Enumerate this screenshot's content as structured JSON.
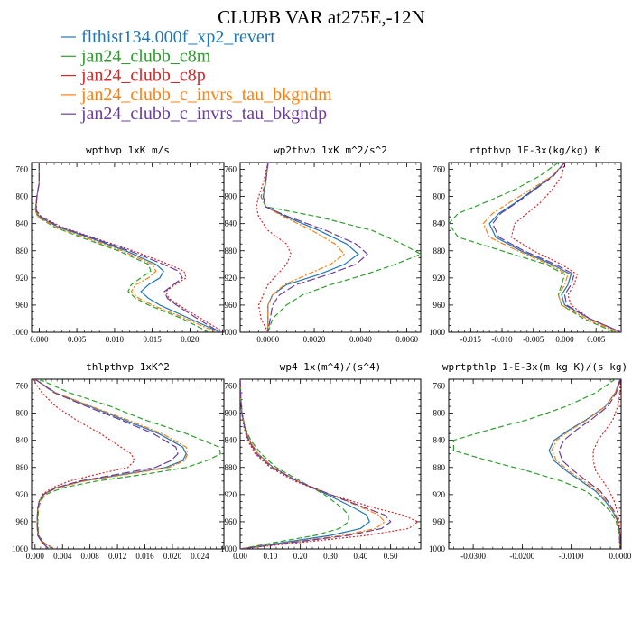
{
  "figure": {
    "title": "CLUBB VAR at275E,-12N",
    "legend": [
      {
        "label": "flthist134.000f_xp2_revert",
        "color": "#1f77b4",
        "dash": "solid"
      },
      {
        "label": "jan24_clubb_c8m",
        "color": "#2ca02c",
        "dash": "dashed"
      },
      {
        "label": "jan24_clubb_c8p",
        "color": "#d62728",
        "dash": "dotted"
      },
      {
        "label": "jan24_clubb_c_invrs_tau_bkgndm",
        "color": "#ff7f0e",
        "dash": "dashdot"
      },
      {
        "label": "jan24_clubb_c_invrs_tau_bkgndp",
        "color": "#6a3d9a",
        "dash": "longdash"
      }
    ]
  },
  "chart_data": [
    {
      "type": "line",
      "title": "wpthvp  1xK m/s",
      "xlim": [
        -0.001,
        0.0245
      ],
      "ylim": [
        1000,
        750
      ],
      "xticks": [
        0.0,
        0.005,
        0.01,
        0.015,
        0.02
      ],
      "xtick_labels": [
        "0.000",
        "0.005",
        "0.010",
        "0.015",
        "0.020"
      ],
      "yticks": [
        760,
        800,
        840,
        880,
        920,
        960,
        1000
      ],
      "ytick_labels": [
        "760",
        "800",
        "840",
        "880",
        "920",
        "960",
        "1000"
      ],
      "y": [
        750,
        780,
        800,
        820,
        830,
        845,
        860,
        880,
        900,
        910,
        920,
        930,
        940,
        950,
        960,
        980,
        1000
      ],
      "series": [
        {
          "name": "flthist134.000f_xp2_revert",
          "x": [
            0.0,
            0.0,
            -0.0003,
            -0.0005,
            0.0,
            0.0025,
            0.0065,
            0.0115,
            0.0155,
            0.0165,
            0.016,
            0.0145,
            0.0135,
            0.0145,
            0.016,
            0.02,
            0.024
          ]
        },
        {
          "name": "jan24_clubb_c8m",
          "x": [
            0.0,
            0.0,
            -0.0003,
            -0.0005,
            -0.0002,
            0.002,
            0.0055,
            0.0105,
            0.0145,
            0.0148,
            0.0135,
            0.0122,
            0.0118,
            0.0128,
            0.0145,
            0.019,
            0.0225
          ]
        },
        {
          "name": "jan24_clubb_c8p",
          "x": [
            0.0,
            0.0,
            -0.0003,
            -0.0004,
            0.0003,
            0.003,
            0.007,
            0.0125,
            0.0172,
            0.0192,
            0.0195,
            0.018,
            0.0168,
            0.0172,
            0.0185,
            0.0215,
            0.0245
          ]
        },
        {
          "name": "jan24_clubb_c_invrs_tau_bkgndm",
          "x": [
            0.0,
            0.0,
            -0.0003,
            -0.0005,
            -0.0001,
            0.0022,
            0.006,
            0.011,
            0.015,
            0.0155,
            0.0145,
            0.0128,
            0.0122,
            0.0132,
            0.015,
            0.0195,
            0.0235
          ]
        },
        {
          "name": "jan24_clubb_c_invrs_tau_bkgndp",
          "x": [
            0.0,
            0.0,
            -0.0003,
            -0.0004,
            0.0002,
            0.0028,
            0.0068,
            0.012,
            0.0165,
            0.0185,
            0.019,
            0.0178,
            0.0166,
            0.017,
            0.0182,
            0.021,
            0.024
          ]
        }
      ]
    },
    {
      "type": "line",
      "title": "wp2thvp  1xK m^2/s^2",
      "xlim": [
        -0.0012,
        0.0066
      ],
      "ylim": [
        1000,
        750
      ],
      "xticks": [
        0.0,
        0.002,
        0.004,
        0.006
      ],
      "xtick_labels": [
        "0.0000",
        "0.0020",
        "0.0040",
        "0.0060"
      ],
      "yticks": [
        760,
        800,
        840,
        880,
        920,
        960,
        1000
      ],
      "ytick_labels": [
        "760",
        "800",
        "840",
        "880",
        "920",
        "960",
        "1000"
      ],
      "y": [
        750,
        780,
        800,
        815,
        830,
        850,
        870,
        885,
        900,
        915,
        930,
        945,
        960,
        980,
        1000
      ],
      "series": [
        {
          "name": "flthist134.000f_xp2_revert",
          "x": [
            0.0,
            -0.0001,
            -0.0002,
            -0.0001,
            0.0008,
            0.0022,
            0.0034,
            0.0039,
            0.0033,
            0.0022,
            0.0008,
            0.0002,
            0.0,
            0.0,
            0.0
          ]
        },
        {
          "name": "jan24_clubb_c8m",
          "x": [
            0.0,
            -0.0001,
            -0.0003,
            -0.0001,
            0.0022,
            0.0045,
            0.0058,
            0.0066,
            0.0055,
            0.0042,
            0.0027,
            0.0015,
            0.0008,
            0.0002,
            0.0
          ]
        },
        {
          "name": "jan24_clubb_c8p",
          "x": [
            0.0,
            -0.0002,
            -0.0004,
            -0.0005,
            -0.0004,
            0.0,
            0.0008,
            0.001,
            0.0008,
            0.0004,
            0.0,
            -0.0002,
            -0.0004,
            -0.0003,
            0.0
          ]
        },
        {
          "name": "jan24_clubb_c_invrs_tau_bkgndm",
          "x": [
            0.0,
            -0.0001,
            -0.0002,
            -0.0001,
            0.0007,
            0.0019,
            0.0029,
            0.0033,
            0.0027,
            0.0017,
            0.0007,
            0.0002,
            0.0,
            0.0,
            0.0
          ]
        },
        {
          "name": "jan24_clubb_c_invrs_tau_bkgndp",
          "x": [
            0.0,
            -0.0001,
            -0.0002,
            -0.0001,
            0.0009,
            0.0025,
            0.0038,
            0.0043,
            0.0038,
            0.0026,
            0.0012,
            0.0005,
            0.0002,
            0.0001,
            0.0
          ]
        }
      ]
    },
    {
      "type": "line",
      "title": "rtpthvp  1E-3x(kg/kg) K",
      "xlim": [
        -0.0185,
        0.009
      ],
      "ylim": [
        1000,
        750
      ],
      "xticks": [
        -0.015,
        -0.01,
        -0.005,
        0.0,
        0.005
      ],
      "xtick_labels": [
        "-0.015",
        "-0.010",
        "-0.005",
        "0.000",
        "0.005"
      ],
      "yticks": [
        760,
        800,
        840,
        880,
        920,
        960,
        1000
      ],
      "ytick_labels": [
        "760",
        "800",
        "840",
        "880",
        "920",
        "960",
        "1000"
      ],
      "y": [
        750,
        770,
        790,
        810,
        825,
        840,
        860,
        880,
        900,
        915,
        930,
        945,
        960,
        980,
        1000
      ],
      "series": [
        {
          "name": "flthist134.000f_xp2_revert",
          "x": [
            0.0,
            -0.002,
            -0.005,
            -0.008,
            -0.0105,
            -0.012,
            -0.011,
            -0.007,
            -0.002,
            0.001,
            0.0005,
            -0.0005,
            0.0,
            0.004,
            0.009
          ]
        },
        {
          "name": "jan24_clubb_c8m",
          "x": [
            -0.001,
            -0.004,
            -0.008,
            -0.013,
            -0.017,
            -0.0185,
            -0.017,
            -0.01,
            -0.003,
            0.0,
            -0.0005,
            -0.001,
            -0.0005,
            0.003,
            0.008
          ]
        },
        {
          "name": "jan24_clubb_c8p",
          "x": [
            0.0,
            -0.0005,
            -0.002,
            -0.004,
            -0.006,
            -0.008,
            -0.0085,
            -0.005,
            -0.0005,
            0.002,
            0.0015,
            0.0005,
            0.001,
            0.004,
            0.009
          ]
        },
        {
          "name": "jan24_clubb_c_invrs_tau_bkgndm",
          "x": [
            0.0,
            -0.002,
            -0.0055,
            -0.009,
            -0.0115,
            -0.013,
            -0.012,
            -0.0075,
            -0.0025,
            0.0005,
            0.0,
            -0.001,
            -0.0005,
            0.0035,
            0.0085
          ]
        },
        {
          "name": "jan24_clubb_c_invrs_tau_bkgndp",
          "x": [
            0.0,
            -0.0018,
            -0.0048,
            -0.0078,
            -0.0102,
            -0.0115,
            -0.0105,
            -0.0065,
            -0.0015,
            0.0015,
            0.001,
            0.0,
            0.0003,
            0.004,
            0.009
          ]
        }
      ]
    },
    {
      "type": "line",
      "title": "thlpthvp  1xK^2",
      "xlim": [
        -0.0005,
        0.0275
      ],
      "ylim": [
        1000,
        750
      ],
      "xticks": [
        0.0,
        0.004,
        0.008,
        0.012,
        0.016,
        0.02,
        0.024
      ],
      "xtick_labels": [
        "0.000",
        "0.004",
        "0.008",
        "0.012",
        "0.016",
        "0.020",
        "0.024"
      ],
      "yticks": [
        760,
        800,
        840,
        880,
        920,
        960,
        1000
      ],
      "ytick_labels": [
        "760",
        "800",
        "840",
        "880",
        "920",
        "960",
        "1000"
      ],
      "y": [
        750,
        770,
        790,
        810,
        830,
        850,
        860,
        870,
        880,
        890,
        900,
        910,
        920,
        930,
        940,
        960,
        980,
        990,
        1000
      ],
      "series": [
        {
          "name": "flthist134.000f_xp2_revert",
          "x": [
            0.0,
            0.003,
            0.008,
            0.013,
            0.018,
            0.0215,
            0.022,
            0.0215,
            0.019,
            0.013,
            0.007,
            0.003,
            0.0012,
            0.0006,
            0.0004,
            0.0003,
            0.0004,
            0.001,
            0.002
          ]
        },
        {
          "name": "jan24_clubb_c8m",
          "x": [
            0.0006,
            0.005,
            0.011,
            0.016,
            0.022,
            0.0268,
            0.027,
            0.025,
            0.022,
            0.016,
            0.009,
            0.004,
            0.0015,
            0.0008,
            0.0005,
            0.0004,
            0.0005,
            0.0012,
            0.0025
          ]
        },
        {
          "name": "jan24_clubb_c8p",
          "x": [
            -0.0003,
            0.001,
            0.003,
            0.006,
            0.0095,
            0.0125,
            0.014,
            0.0145,
            0.0135,
            0.009,
            0.005,
            0.0025,
            0.001,
            0.0006,
            0.0004,
            0.0003,
            0.0005,
            0.0012,
            0.0028
          ]
        },
        {
          "name": "jan24_clubb_c_invrs_tau_bkgndm",
          "x": [
            0.0,
            0.003,
            0.0082,
            0.0135,
            0.0185,
            0.022,
            0.0222,
            0.0218,
            0.0195,
            0.0135,
            0.0072,
            0.0032,
            0.0013,
            0.0007,
            0.0005,
            0.0003,
            0.0004,
            0.001,
            0.002
          ]
        },
        {
          "name": "jan24_clubb_c_invrs_tau_bkgndp",
          "x": [
            0.0,
            0.0028,
            0.0075,
            0.0125,
            0.0172,
            0.0205,
            0.0208,
            0.0198,
            0.0175,
            0.012,
            0.0065,
            0.003,
            0.0012,
            0.0006,
            0.0004,
            0.0003,
            0.0004,
            0.001,
            0.002
          ]
        }
      ]
    },
    {
      "type": "line",
      "title": "wp4  1x(m^4)/(s^4)",
      "xlim": [
        0.0,
        0.6
      ],
      "ylim": [
        1000,
        750
      ],
      "xticks": [
        0.0,
        0.1,
        0.2,
        0.3,
        0.4,
        0.5
      ],
      "xtick_labels": [
        "0.00",
        "0.10",
        "0.20",
        "0.30",
        "0.40",
        "0.50"
      ],
      "yticks": [
        760,
        800,
        840,
        880,
        920,
        960,
        1000
      ],
      "ytick_labels": [
        "760",
        "800",
        "840",
        "880",
        "920",
        "960",
        "1000"
      ],
      "y": [
        750,
        780,
        800,
        820,
        840,
        860,
        880,
        900,
        920,
        940,
        950,
        960,
        970,
        980,
        990,
        1000
      ],
      "series": [
        {
          "name": "flthist134.000f_xp2_revert",
          "x": [
            0.0,
            0.002,
            0.006,
            0.015,
            0.03,
            0.06,
            0.11,
            0.19,
            0.29,
            0.38,
            0.42,
            0.43,
            0.4,
            0.3,
            0.15,
            0.0
          ]
        },
        {
          "name": "jan24_clubb_c8m",
          "x": [
            0.0,
            0.002,
            0.006,
            0.016,
            0.035,
            0.07,
            0.12,
            0.2,
            0.28,
            0.34,
            0.36,
            0.36,
            0.33,
            0.25,
            0.12,
            0.0
          ]
        },
        {
          "name": "jan24_clubb_c8p",
          "x": [
            0.0,
            0.002,
            0.005,
            0.012,
            0.025,
            0.05,
            0.1,
            0.18,
            0.3,
            0.45,
            0.54,
            0.59,
            0.56,
            0.42,
            0.21,
            0.0
          ]
        },
        {
          "name": "jan24_clubb_c_invrs_tau_bkgndm",
          "x": [
            0.0,
            0.002,
            0.006,
            0.015,
            0.03,
            0.06,
            0.11,
            0.19,
            0.3,
            0.41,
            0.46,
            0.48,
            0.45,
            0.34,
            0.17,
            0.0
          ]
        },
        {
          "name": "jan24_clubb_c_invrs_tau_bkgndp",
          "x": [
            0.0,
            0.002,
            0.006,
            0.014,
            0.028,
            0.055,
            0.105,
            0.19,
            0.3,
            0.42,
            0.48,
            0.5,
            0.47,
            0.36,
            0.18,
            0.0
          ]
        }
      ]
    },
    {
      "type": "line",
      "title": "wprtpthlp  1-E-3x(m kg K)/(s kg)",
      "xlim": [
        -0.035,
        0.0002
      ],
      "ylim": [
        1000,
        750
      ],
      "xticks": [
        -0.03,
        -0.02,
        -0.01,
        0.0
      ],
      "xtick_labels": [
        "-0.0300",
        "-0.0200",
        "-0.0100",
        "0.0000"
      ],
      "yticks": [
        760,
        800,
        840,
        880,
        920,
        960,
        1000
      ],
      "ytick_labels": [
        "760",
        "800",
        "840",
        "880",
        "920",
        "960",
        "1000"
      ],
      "y": [
        750,
        770,
        790,
        810,
        825,
        840,
        855,
        870,
        885,
        900,
        915,
        930,
        945,
        960,
        980,
        1000
      ],
      "series": [
        {
          "name": "flthist134.000f_xp2_revert",
          "x": [
            0.0,
            -0.001,
            -0.003,
            -0.007,
            -0.0105,
            -0.0135,
            -0.0145,
            -0.0135,
            -0.011,
            -0.008,
            -0.005,
            -0.003,
            -0.0015,
            -0.0005,
            0.0,
            0.0
          ]
        },
        {
          "name": "jan24_clubb_c8m",
          "x": [
            -0.001,
            -0.005,
            -0.011,
            -0.019,
            -0.027,
            -0.034,
            -0.034,
            -0.027,
            -0.019,
            -0.012,
            -0.007,
            -0.004,
            -0.002,
            -0.0008,
            -0.0002,
            0.0
          ]
        },
        {
          "name": "jan24_clubb_c8p",
          "x": [
            0.0,
            0.0,
            -0.0005,
            -0.0015,
            -0.003,
            -0.0045,
            -0.0055,
            -0.0055,
            -0.005,
            -0.0035,
            -0.0022,
            -0.0012,
            -0.0006,
            -0.0002,
            0.0,
            0.0
          ]
        },
        {
          "name": "jan24_clubb_c_invrs_tau_bkgndm",
          "x": [
            0.0,
            -0.001,
            -0.003,
            -0.0068,
            -0.0102,
            -0.013,
            -0.014,
            -0.013,
            -0.0105,
            -0.0075,
            -0.0045,
            -0.0028,
            -0.0014,
            -0.0005,
            0.0,
            0.0
          ]
        },
        {
          "name": "jan24_clubb_c_invrs_tau_bkgndp",
          "x": [
            0.0,
            -0.0008,
            -0.0025,
            -0.006,
            -0.009,
            -0.0115,
            -0.0125,
            -0.0118,
            -0.0095,
            -0.0068,
            -0.004,
            -0.0025,
            -0.0012,
            -0.0004,
            0.0,
            0.0
          ]
        }
      ]
    }
  ]
}
